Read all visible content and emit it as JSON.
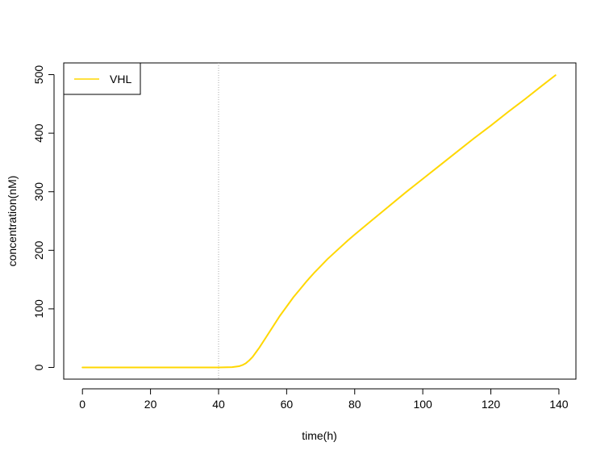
{
  "chart_data": {
    "type": "line",
    "title": "",
    "xlabel": "time(h)",
    "ylabel": "concentration(nM)",
    "xlim": [
      -5.5,
      145
    ],
    "ylim": [
      -20,
      520
    ],
    "x_ticks": [
      0,
      20,
      40,
      60,
      80,
      100,
      120,
      140
    ],
    "y_ticks": [
      0,
      100,
      200,
      300,
      400,
      500
    ],
    "grid": false,
    "legend": {
      "position": "top-left",
      "entries": [
        "VHL"
      ]
    },
    "reference_lines": [
      {
        "orientation": "vertical",
        "x": 40,
        "style": "dotted",
        "color": "#aaaaaa"
      }
    ],
    "series": [
      {
        "name": "VHL",
        "color": "#FFD700",
        "x": [
          0,
          10,
          20,
          30,
          40,
          44,
          46,
          47,
          48,
          49,
          50,
          51,
          52,
          54,
          56,
          58,
          60,
          62,
          64,
          66,
          68,
          70,
          72,
          75,
          78,
          80,
          85,
          90,
          95,
          100,
          105,
          110,
          115,
          120,
          125,
          130,
          135,
          139
        ],
        "y": [
          0,
          0,
          0,
          0,
          0,
          0.5,
          2,
          4,
          7,
          12,
          18,
          26,
          34,
          52,
          70,
          88,
          104,
          120,
          134,
          148,
          161,
          173,
          185,
          201,
          217,
          227,
          251,
          275,
          299,
          322,
          345,
          368,
          391,
          413,
          436,
          458,
          481,
          499
        ]
      }
    ]
  }
}
